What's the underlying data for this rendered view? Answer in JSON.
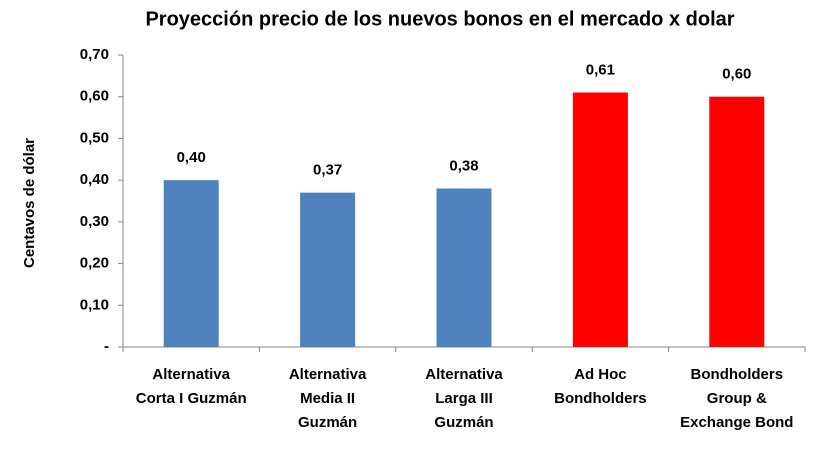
{
  "chart_data": {
    "type": "bar",
    "title": "Proyección precio de los nuevos bonos en el mercado x dolar",
    "y_label": "Centavos de dólar",
    "categories": [
      [
        "Alternativa",
        "Corta I Guzmán"
      ],
      [
        "Alternativa",
        "Media II",
        "Guzmán"
      ],
      [
        "Alternativa",
        "Larga III",
        "Guzmán"
      ],
      [
        "Ad Hoc",
        "Bondholders"
      ],
      [
        "Bondholders",
        "Group &",
        "Exchange Bond"
      ]
    ],
    "values": [
      0.4,
      0.37,
      0.38,
      0.61,
      0.6
    ],
    "value_labels": [
      "0,40",
      "0,37",
      "0,38",
      "0,61",
      "0,60"
    ],
    "colors": [
      "#4f81bd",
      "#4f81bd",
      "#4f81bd",
      "#ff0000",
      "#ff0000"
    ],
    "ylim": [
      0,
      0.7
    ],
    "yticks": [
      {
        "value": 0,
        "label": "-"
      },
      {
        "value": 0.1,
        "label": "0,10"
      },
      {
        "value": 0.2,
        "label": "0,20"
      },
      {
        "value": 0.3,
        "label": "0,30"
      },
      {
        "value": 0.4,
        "label": "0,40"
      },
      {
        "value": 0.5,
        "label": "0,50"
      },
      {
        "value": 0.6,
        "label": "0,60"
      },
      {
        "value": 0.7,
        "label": "0,70"
      }
    ],
    "grid": false
  }
}
